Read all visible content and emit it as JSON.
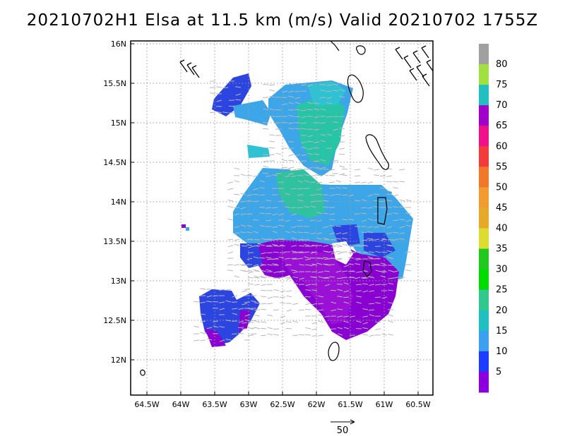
{
  "title": "20210702H1 Elsa at 11.5 km (m/s) Valid 20210702 1755Z",
  "map": {
    "lon_ticks": [
      "64.5W",
      "64W",
      "63.5W",
      "63W",
      "62.5W",
      "62W",
      "61.5W",
      "61W",
      "60.5W"
    ],
    "lat_ticks": [
      "16N",
      "15.5N",
      "15N",
      "14.5N",
      "14N",
      "13.5N",
      "13N",
      "12.5N",
      "12N"
    ],
    "grid": true
  },
  "colorbar": {
    "labels": [
      "80",
      "75",
      "70",
      "65",
      "60",
      "55",
      "50",
      "45",
      "40",
      "35",
      "30",
      "25",
      "20",
      "15",
      "10",
      "5"
    ],
    "colors": [
      "#a0a0a0",
      "#a0e040",
      "#20c0c0",
      "#a000c8",
      "#f0108c",
      "#f03c3c",
      "#f07828",
      "#f09c30",
      "#e6aa28",
      "#dcdc32",
      "#20c820",
      "#00dc00",
      "#30c88c",
      "#20c0c0",
      "#3ca0f0",
      "#1e3cff",
      "#8c00dc"
    ]
  },
  "reference_vector": {
    "label": "50"
  }
}
